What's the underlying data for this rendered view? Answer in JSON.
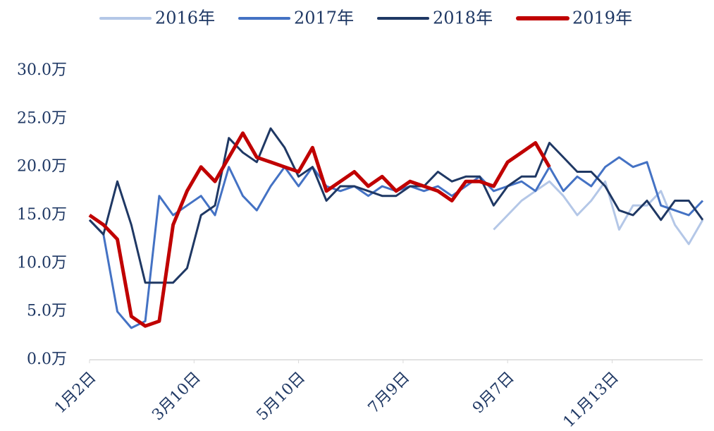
{
  "chart_data": {
    "type": "line",
    "x": [
      0,
      8,
      16,
      24,
      32,
      40,
      48,
      56,
      64,
      72,
      80,
      88,
      96,
      104,
      112,
      120,
      128,
      136,
      144,
      152,
      160,
      168,
      176,
      184,
      192,
      200,
      208,
      216,
      224,
      232,
      240,
      248,
      256,
      264,
      272,
      280,
      288,
      296,
      304,
      312,
      320,
      328,
      336,
      344,
      352
    ],
    "xlim": [
      0,
      352
    ],
    "xticks": [
      {
        "value": 0,
        "label": "1月2日"
      },
      {
        "value": 60,
        "label": "3月10日"
      },
      {
        "value": 120,
        "label": "5月10日"
      },
      {
        "value": 180,
        "label": "7月9日"
      },
      {
        "value": 240,
        "label": "9月7日"
      },
      {
        "value": 300,
        "label": "11月13日"
      }
    ],
    "ylim": [
      0,
      30
    ],
    "yticks": [
      {
        "value": 0,
        "label": "0.0万"
      },
      {
        "value": 5,
        "label": "5.0万"
      },
      {
        "value": 10,
        "label": "10.0万"
      },
      {
        "value": 15,
        "label": "15.0万"
      },
      {
        "value": 20,
        "label": "20.0万"
      },
      {
        "value": 25,
        "label": "25.0万"
      },
      {
        "value": 30,
        "label": "30.0万"
      }
    ],
    "legend": "top",
    "series": [
      {
        "name": "2016年",
        "color": "#b4c7e7",
        "width": 3,
        "values": [
          null,
          null,
          null,
          null,
          null,
          null,
          null,
          null,
          null,
          null,
          null,
          null,
          null,
          null,
          null,
          null,
          null,
          null,
          null,
          null,
          null,
          null,
          null,
          null,
          null,
          null,
          null,
          null,
          null,
          13.5,
          15,
          16.5,
          17.5,
          18.5,
          17,
          15,
          16.5,
          18.5,
          13.5,
          16,
          16,
          17.5,
          14,
          12,
          14.5
        ]
      },
      {
        "name": "2017年",
        "color": "#4472c4",
        "width": 3,
        "values": [
          14.5,
          13,
          5,
          3.3,
          4,
          17,
          15,
          16,
          17,
          15,
          20,
          17,
          15.5,
          18,
          20,
          18,
          20,
          18,
          17.5,
          18,
          17,
          18,
          17.5,
          18,
          17.5,
          18,
          17,
          18,
          19,
          17.5,
          18,
          18.5,
          17.5,
          20,
          17.5,
          19,
          18,
          20,
          21,
          20,
          20.5,
          16,
          15.5,
          15,
          16.5
        ]
      },
      {
        "name": "2018年",
        "color": "#1f3864",
        "width": 3,
        "values": [
          14.5,
          13,
          18.5,
          14,
          8,
          8,
          8,
          9.5,
          15,
          16,
          23,
          21.5,
          20.5,
          24,
          22,
          19,
          20,
          16.5,
          18,
          18,
          17.5,
          17,
          17,
          18,
          18,
          19.5,
          18.5,
          19,
          19,
          16,
          18,
          19,
          19,
          22.5,
          21,
          19.5,
          19.5,
          18,
          15.5,
          15,
          16.5,
          14.5,
          16.5,
          16.5,
          14.5
        ]
      },
      {
        "name": "2019年",
        "color": "#c00000",
        "width": 5,
        "values": [
          15,
          14,
          12.5,
          4.5,
          3.5,
          4,
          14,
          17.5,
          20,
          18.5,
          21,
          23.5,
          21,
          20.5,
          20,
          19.5,
          22,
          17.5,
          18.5,
          19.5,
          18,
          19,
          17.5,
          18.5,
          18,
          17.5,
          16.5,
          18.5,
          18.5,
          18,
          20.5,
          21.5,
          22.5,
          20,
          null,
          null,
          null,
          null,
          null,
          null,
          null,
          null,
          null,
          null,
          null
        ]
      }
    ]
  }
}
